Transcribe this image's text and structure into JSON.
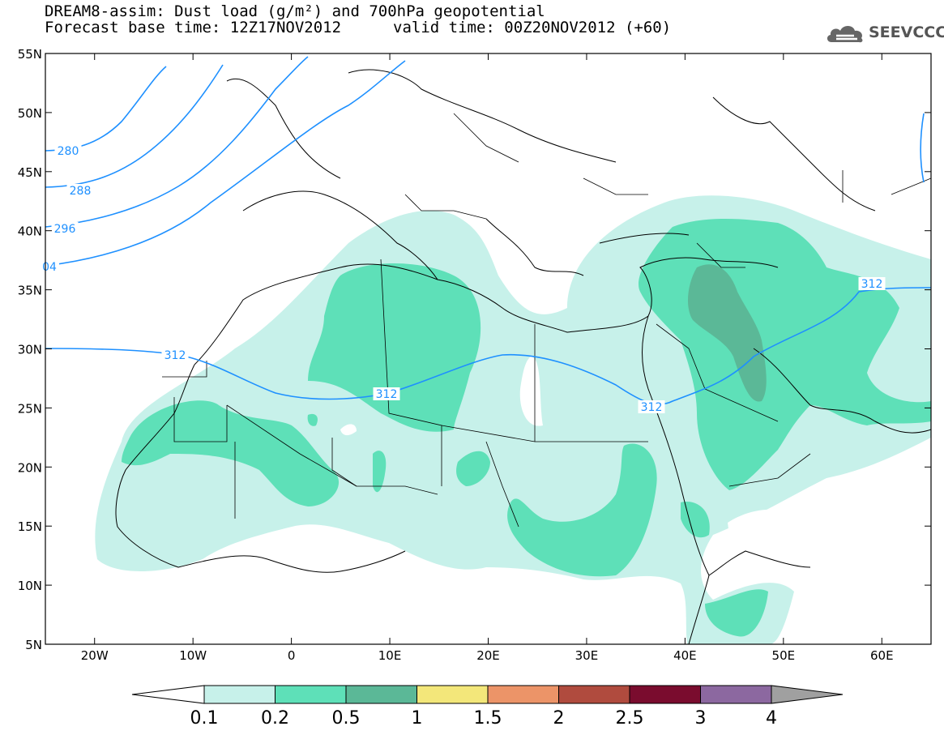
{
  "title": {
    "line1": "DREAM8-assim: Dust load (g/m²) and 700hPa geopotential",
    "line2_base": "Forecast base time: 12Z17NOV2012",
    "line2_valid": "valid time: 00Z20NOV2012 (+60)"
  },
  "logo": {
    "text": "SEEVCCC",
    "icon": "cloud-icon"
  },
  "map": {
    "lon_range": [
      -25,
      65
    ],
    "lat_range": [
      5,
      55
    ],
    "lat_ticks": [
      {
        "value": 55,
        "label": "55N"
      },
      {
        "value": 50,
        "label": "50N"
      },
      {
        "value": 45,
        "label": "45N"
      },
      {
        "value": 40,
        "label": "40N"
      },
      {
        "value": 35,
        "label": "35N"
      },
      {
        "value": 30,
        "label": "30N"
      },
      {
        "value": 25,
        "label": "25N"
      },
      {
        "value": 20,
        "label": "20N"
      },
      {
        "value": 15,
        "label": "15N"
      },
      {
        "value": 10,
        "label": "10N"
      },
      {
        "value": 5,
        "label": "5N"
      }
    ],
    "lon_ticks": [
      {
        "value": -20,
        "label": "20W"
      },
      {
        "value": -10,
        "label": "10W"
      },
      {
        "value": 0,
        "label": "0"
      },
      {
        "value": 10,
        "label": "10E"
      },
      {
        "value": 20,
        "label": "20E"
      },
      {
        "value": 30,
        "label": "30E"
      },
      {
        "value": 40,
        "label": "40E"
      },
      {
        "value": 50,
        "label": "50E"
      },
      {
        "value": 60,
        "label": "60E"
      }
    ],
    "contour_labels": [
      "280",
      "288",
      "296",
      "04",
      "312",
      "312",
      "312",
      "312"
    ]
  },
  "colorbar": {
    "labels": [
      "0.1",
      "0.2",
      "0.5",
      "1",
      "1.5",
      "2",
      "2.5",
      "3",
      "4"
    ],
    "colors": [
      "#ffffff",
      "#c7f1ea",
      "#5ee0b8",
      "#5bb897",
      "#f3e77a",
      "#ec9468",
      "#b04b3e",
      "#7a0c2e",
      "#8c68a0",
      "#a0a0a0"
    ]
  }
}
